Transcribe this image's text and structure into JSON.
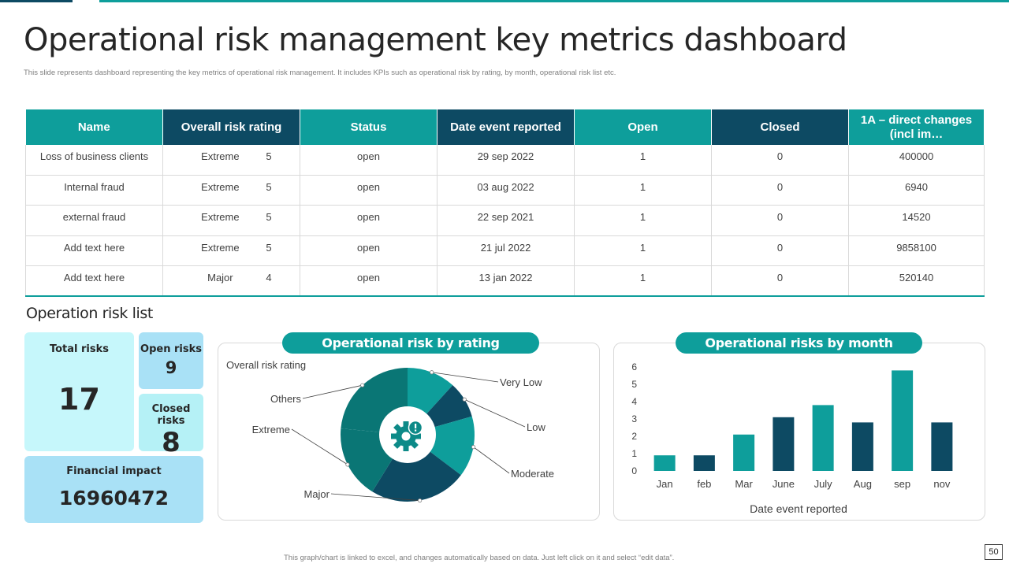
{
  "title": "Operational risk management key metrics dashboard",
  "subtitle": "This slide represents dashboard representing the key metrics of operational risk management.  It includes KPIs  such as operational risk by rating, by month,  operational risk list etc.",
  "table": {
    "headers": [
      "Name",
      "Overall risk rating",
      "Status",
      "Date event reported",
      "Open",
      "Closed",
      "1A – direct changes (incl im…"
    ],
    "rows": [
      {
        "name": "Loss of business clients",
        "rating": "Extreme",
        "score": "5",
        "status": "open",
        "date": "29 sep 2022",
        "open": "1",
        "closed": "0",
        "changes": "400000"
      },
      {
        "name": "Internal  fraud",
        "rating": "Extreme",
        "score": "5",
        "status": "open",
        "date": "03 aug 2022",
        "open": "1",
        "closed": "0",
        "changes": "6940"
      },
      {
        "name": "external fraud",
        "rating": "Extreme",
        "score": "5",
        "status": "open",
        "date": "22 sep 2021",
        "open": "1",
        "closed": "0",
        "changes": "14520"
      },
      {
        "name": "Add text here",
        "rating": "Extreme",
        "score": "5",
        "status": "open",
        "date": "21 jul 2022",
        "open": "1",
        "closed": "0",
        "changes": "9858100"
      },
      {
        "name": "Add text here",
        "rating": "Major",
        "score": "4",
        "status": "open",
        "date": "13 jan 2022",
        "open": "1",
        "closed": "0",
        "changes": "520140"
      }
    ]
  },
  "risk_list": {
    "title": "Operation risk list",
    "total_label": "Total risks",
    "total_value": "17",
    "open_label": "Open risks",
    "open_value": "9",
    "closed_label": "Closed risks",
    "closed_value": "8",
    "financial_label": "Financial impact",
    "financial_value": "16960472"
  },
  "chart_data": [
    {
      "type": "pie",
      "title": "Operational risk  by rating",
      "subtitle": "Overall risk rating",
      "center_icon": "gear-alert-icon",
      "categories": [
        "Very Low",
        "Low",
        "Moderate",
        "Major",
        "Extreme",
        "Others"
      ],
      "values": [
        2,
        1.5,
        2.5,
        4,
        3,
        4
      ],
      "colors": [
        "#0e9e9b",
        "#0d4a63",
        "#0e9e9b",
        "#0d4a63",
        "#0a7675",
        "#0a7675"
      ]
    },
    {
      "type": "bar",
      "title": "Operational risks  by month",
      "categories": [
        "Jan",
        "feb",
        "Mar",
        "June",
        "July",
        "Aug",
        "sep",
        "nov"
      ],
      "values": [
        0.9,
        0.9,
        2.1,
        3.1,
        3.8,
        2.8,
        5.8,
        2.8
      ],
      "colors": [
        "#0e9e9b",
        "#0d4a63",
        "#0e9e9b",
        "#0d4a63",
        "#0e9e9b",
        "#0d4a63",
        "#0e9e9b",
        "#0d4a63"
      ],
      "ylim": [
        0,
        6
      ],
      "yticks": [
        "0",
        "1",
        "2",
        "3",
        "4",
        "5",
        "6"
      ],
      "xlabel": "Date event reported"
    }
  ],
  "footer": "This graph/chart is linked to excel, and changes automatically based on data. Just left click on it and select “edit data”.",
  "page_number": "50"
}
